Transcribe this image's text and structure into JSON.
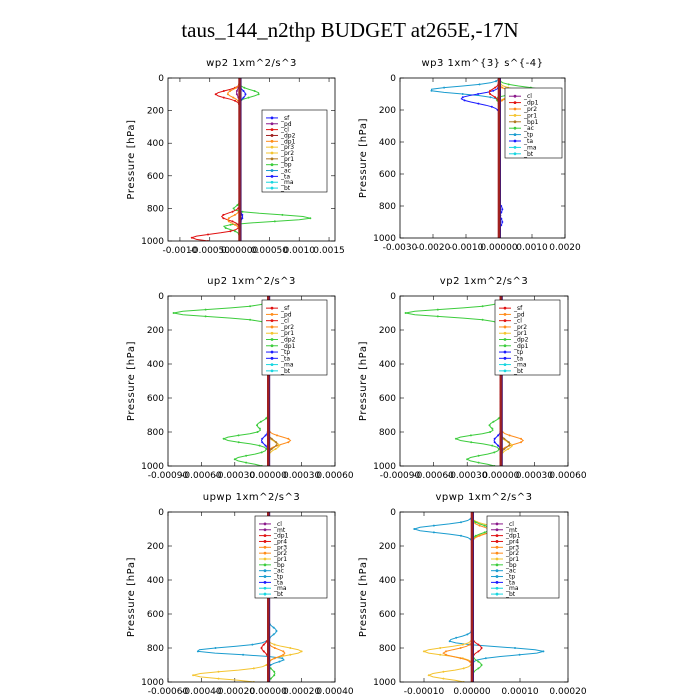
{
  "title": "taus_144_n2thp  BUDGET at265E,-17N",
  "colors": {
    "blue": "#1a1aff",
    "purple": "#8b1a8b",
    "red": "#e01010",
    "orange": "#ff8c1a",
    "yellow": "#f4c430",
    "green": "#3ccc3c",
    "teal": "#1a9ccf",
    "cyan": "#18d6e0",
    "darkred": "#a02020",
    "gray": "#999999",
    "brown": "#b07820"
  },
  "chart_data": [
    {
      "type": "line",
      "title": "wp2   1xm^2/s^3",
      "ylabel": "Pressure [hPa]",
      "ylim": [
        1000,
        0
      ],
      "yticks": [
        "0",
        "200",
        "400",
        "600",
        "800",
        "1000"
      ],
      "xlim": [
        -0.0012,
        0.0016
      ],
      "xticks": [
        {
          "v": -0.001,
          "t": "-0.0010"
        },
        {
          "v": -0.0005,
          "t": "-0.00050"
        },
        {
          "v": 0,
          "t": "0.00000"
        },
        {
          "v": 0.0005,
          "t": "0.00050"
        },
        {
          "v": 0.001,
          "t": "0.0010"
        },
        {
          "v": 0.0015,
          "t": "0.0015"
        }
      ],
      "legend": [
        "_sf",
        "_pd",
        "_cl",
        "_dp2",
        "_dp1",
        "_pr3",
        "_pr2",
        "_pr1",
        "_bp",
        "_ac",
        "_ta",
        "_ma",
        "_bt"
      ],
      "legend_colors": [
        "blue",
        "purple",
        "red",
        "darkred",
        "orange",
        "yellow",
        "yellow",
        "brown",
        "green",
        "teal",
        "blue",
        "cyan",
        "cyan"
      ],
      "series": [
        {
          "color": "green",
          "peaks": [
            [
              100,
              0.0005
            ],
            [
              110,
              -0.0002
            ],
            [
              860,
              0.0013
            ],
            [
              900,
              -0.0004
            ],
            [
              820,
              -0.0002
            ]
          ]
        },
        {
          "color": "red",
          "peaks": [
            [
              100,
              -0.0004
            ],
            [
              850,
              -0.0003
            ],
            [
              980,
              -0.0008
            ]
          ]
        },
        {
          "color": "orange",
          "peaks": [
            [
              95,
              -0.0002
            ],
            [
              870,
              -0.0002
            ]
          ]
        },
        {
          "color": "blue",
          "peaks": [
            [
              100,
              0.0001
            ],
            [
              850,
              5e-05
            ]
          ]
        },
        {
          "color": "purple",
          "peaks": [
            [
              90,
              -5e-05
            ]
          ]
        },
        {
          "color": "darkred",
          "peaks": []
        }
      ]
    },
    {
      "type": "line",
      "title": "wp3   1xm^{3} s^{-4}",
      "ylabel": "Pressure [hPa]",
      "ylim": [
        1000,
        0
      ],
      "yticks": [
        "0",
        "200",
        "400",
        "600",
        "800",
        "1000"
      ],
      "xlim": [
        -0.003,
        0.002
      ],
      "xticks": [
        {
          "v": -0.003,
          "t": "-0.0030"
        },
        {
          "v": -0.002,
          "t": "-0.0020"
        },
        {
          "v": -0.001,
          "t": "-0.0010"
        },
        {
          "v": 0,
          "t": "0.00000"
        },
        {
          "v": 0.001,
          "t": "0.0010"
        },
        {
          "v": 0.002,
          "t": "0.0020"
        }
      ],
      "legend": [
        "_cl",
        "_dp1",
        "_pr2",
        "_pr1",
        "_bp1",
        "_ac",
        "_tp",
        "_ta",
        "_ma",
        "_bt"
      ],
      "legend_colors": [
        "purple",
        "red",
        "orange",
        "yellow",
        "brown",
        "green",
        "teal",
        "blue",
        "cyan",
        "cyan"
      ],
      "series": [
        {
          "color": "teal",
          "peaks": [
            [
              75,
              -0.0021
            ]
          ]
        },
        {
          "color": "green",
          "peaks": [
            [
              80,
              0.0016
            ],
            [
              100,
              -0.0005
            ]
          ]
        },
        {
          "color": "blue",
          "peaks": [
            [
              120,
              -0.0009
            ],
            [
              150,
              -0.0005
            ],
            [
              820,
              0.0001
            ],
            [
              900,
              0.0001
            ]
          ]
        },
        {
          "color": "yellow",
          "peaks": [
            [
              90,
              0.0007
            ]
          ]
        },
        {
          "color": "orange",
          "peaks": [
            [
              100,
              0.0005
            ]
          ]
        },
        {
          "color": "red",
          "peaks": [
            [
              90,
              -0.0003
            ]
          ]
        },
        {
          "color": "darkred",
          "peaks": []
        }
      ]
    },
    {
      "type": "line",
      "title": "up2   1xm^2/s^3",
      "ylabel": "Pressure [hPa]",
      "ylim": [
        1000,
        0
      ],
      "yticks": [
        "0",
        "200",
        "400",
        "600",
        "800",
        "1000"
      ],
      "xlim": [
        -0.0009,
        0.0006
      ],
      "xticks": [
        {
          "v": -0.0009,
          "t": "-0.00090"
        },
        {
          "v": -0.0006,
          "t": "-0.00060"
        },
        {
          "v": -0.0003,
          "t": "-0.00030"
        },
        {
          "v": 0,
          "t": "0.00000"
        },
        {
          "v": 0.0003,
          "t": "0.00030"
        },
        {
          "v": 0.0006,
          "t": "0.00060"
        }
      ],
      "legend": [
        "_sf",
        "_pd",
        "_cl",
        "_pr2",
        "_pr1",
        "_dp2",
        "_dp1",
        "_tp",
        "_ta",
        "_ma",
        "_bt"
      ],
      "legend_colors": [
        "red",
        "orange",
        "red",
        "orange",
        "yellow",
        "green",
        "green",
        "blue",
        "blue",
        "cyan",
        "cyan"
      ],
      "series": [
        {
          "color": "green",
          "peaks": [
            [
              100,
              -0.00085
            ],
            [
              840,
              -0.0004
            ],
            [
              960,
              -0.0003
            ],
            [
              760,
              -0.0001
            ]
          ]
        },
        {
          "color": "orange",
          "peaks": [
            [
              110,
              0.0003
            ],
            [
              850,
              0.0002
            ]
          ]
        },
        {
          "color": "yellow",
          "peaks": [
            [
              120,
              0.0002
            ],
            [
              880,
              0.0001
            ]
          ]
        },
        {
          "color": "blue",
          "peaks": [
            [
              130,
              8e-05
            ],
            [
              850,
              -6e-05
            ]
          ]
        },
        {
          "color": "brown",
          "peaks": [
            [
              870,
              8e-05
            ]
          ]
        },
        {
          "color": "red",
          "peaks": []
        }
      ]
    },
    {
      "type": "line",
      "title": "vp2   1xm^2/s^3",
      "ylabel": "Pressure [hPa]",
      "ylim": [
        1000,
        0
      ],
      "yticks": [
        "0",
        "200",
        "400",
        "600",
        "800",
        "1000"
      ],
      "xlim": [
        -0.0009,
        0.0006
      ],
      "xticks": [
        {
          "v": -0.0009,
          "t": "-0.00090"
        },
        {
          "v": -0.0006,
          "t": "-0.00060"
        },
        {
          "v": -0.0003,
          "t": "-0.00030"
        },
        {
          "v": 0,
          "t": "0.00000"
        },
        {
          "v": 0.0003,
          "t": "0.00030"
        },
        {
          "v": 0.0006,
          "t": "0.00060"
        }
      ],
      "legend": [
        "_sf",
        "_pd",
        "_cl",
        "_pr2",
        "_pr1",
        "_dp2",
        "_dp1",
        "_tp",
        "_ta",
        "_ma",
        "_bt"
      ],
      "legend_colors": [
        "red",
        "orange",
        "red",
        "orange",
        "yellow",
        "green",
        "green",
        "blue",
        "blue",
        "cyan",
        "cyan"
      ],
      "series": [
        {
          "color": "green",
          "peaks": [
            [
              100,
              -0.00085
            ],
            [
              840,
              -0.0004
            ],
            [
              960,
              -0.0003
            ],
            [
              760,
              -0.0001
            ]
          ]
        },
        {
          "color": "orange",
          "peaks": [
            [
              110,
              0.0003
            ],
            [
              850,
              0.0002
            ]
          ]
        },
        {
          "color": "yellow",
          "peaks": [
            [
              120,
              0.0002
            ],
            [
              880,
              0.0001
            ]
          ]
        },
        {
          "color": "blue",
          "peaks": [
            [
              130,
              8e-05
            ],
            [
              850,
              -6e-05
            ]
          ]
        },
        {
          "color": "brown",
          "peaks": [
            [
              870,
              8e-05
            ]
          ]
        },
        {
          "color": "red",
          "peaks": []
        }
      ]
    },
    {
      "type": "line",
      "title": "upwp   1xm^2/s^3",
      "ylabel": "Pressure [hPa]",
      "ylim": [
        1000,
        0
      ],
      "yticks": [
        "0",
        "200",
        "400",
        "600",
        "800",
        "1000"
      ],
      "xlim": [
        -0.0006,
        0.0004
      ],
      "xticks": [
        {
          "v": -0.0006,
          "t": "-0.00060"
        },
        {
          "v": -0.0004,
          "t": "-0.00040"
        },
        {
          "v": -0.0002,
          "t": "-0.00020"
        },
        {
          "v": 0,
          "t": "0.00000"
        },
        {
          "v": 0.0002,
          "t": "0.00020"
        },
        {
          "v": 0.0004,
          "t": "0.00040"
        }
      ],
      "legend": [
        "_cl",
        "_mt",
        "_dp1",
        "_pr4",
        "_pr3",
        "_pr2",
        "_pr1",
        "_bp",
        "_ac",
        "_tp",
        "_ta",
        "_ma",
        "_bt"
      ],
      "legend_colors": [
        "purple",
        "purple",
        "red",
        "red",
        "orange",
        "orange",
        "yellow",
        "green",
        "teal",
        "teal",
        "blue",
        "cyan",
        "cyan"
      ],
      "series": [
        {
          "color": "teal",
          "peaks": [
            [
              820,
              -0.0005
            ],
            [
              850,
              0.0002
            ],
            [
              700,
              5e-05
            ]
          ]
        },
        {
          "color": "yellow",
          "peaks": [
            [
              820,
              0.0002
            ],
            [
              960,
              -0.00045
            ],
            [
              110,
              8e-05
            ]
          ]
        },
        {
          "color": "orange",
          "peaks": [
            [
              830,
              0.0001
            ],
            [
              120,
              6e-05
            ]
          ]
        },
        {
          "color": "red",
          "peaks": [
            [
              800,
              -4e-05
            ],
            [
              100,
              -3e-05
            ]
          ]
        },
        {
          "color": "green",
          "peaks": [
            [
              100,
              6e-05
            ],
            [
              950,
              4e-05
            ]
          ]
        },
        {
          "color": "purple",
          "peaks": []
        }
      ]
    },
    {
      "type": "line",
      "title": "vpwp   1xm^2/s^3",
      "ylabel": "Pressure [hPa]",
      "ylim": [
        1000,
        0
      ],
      "yticks": [
        "0",
        "200",
        "400",
        "600",
        "800",
        "1000"
      ],
      "xlim": [
        -0.00015,
        0.0002
      ],
      "xticks": [
        {
          "v": -0.0001,
          "t": "-0.00010"
        },
        {
          "v": 0,
          "t": "0.00000"
        },
        {
          "v": 0.0001,
          "t": "0.00010"
        },
        {
          "v": 0.0002,
          "t": "0.00020"
        }
      ],
      "legend": [
        "_cl",
        "_mt",
        "_dp1",
        "_pr4",
        "_pr3",
        "_pr2",
        "_pr1",
        "_bp",
        "_ac",
        "_tp",
        "_ta",
        "_ma",
        "_bt"
      ],
      "legend_colors": [
        "purple",
        "purple",
        "red",
        "red",
        "orange",
        "orange",
        "yellow",
        "green",
        "teal",
        "teal",
        "blue",
        "cyan",
        "cyan"
      ],
      "series": [
        {
          "color": "teal",
          "peaks": [
            [
              100,
              -0.00012
            ],
            [
              820,
              0.00015
            ],
            [
              760,
              -5e-05
            ]
          ]
        },
        {
          "color": "yellow",
          "peaks": [
            [
              820,
              -0.0001
            ],
            [
              960,
              -9e-05
            ],
            [
              100,
              6e-05
            ]
          ]
        },
        {
          "color": "orange",
          "peaks": [
            [
              830,
              -6e-05
            ],
            [
              110,
              4e-05
            ]
          ]
        },
        {
          "color": "green",
          "peaks": [
            [
              100,
              4e-05
            ],
            [
              900,
              2e-05
            ]
          ]
        },
        {
          "color": "red",
          "peaks": [
            [
              800,
              2e-05
            ]
          ]
        },
        {
          "color": "purple",
          "peaks": []
        }
      ]
    }
  ]
}
